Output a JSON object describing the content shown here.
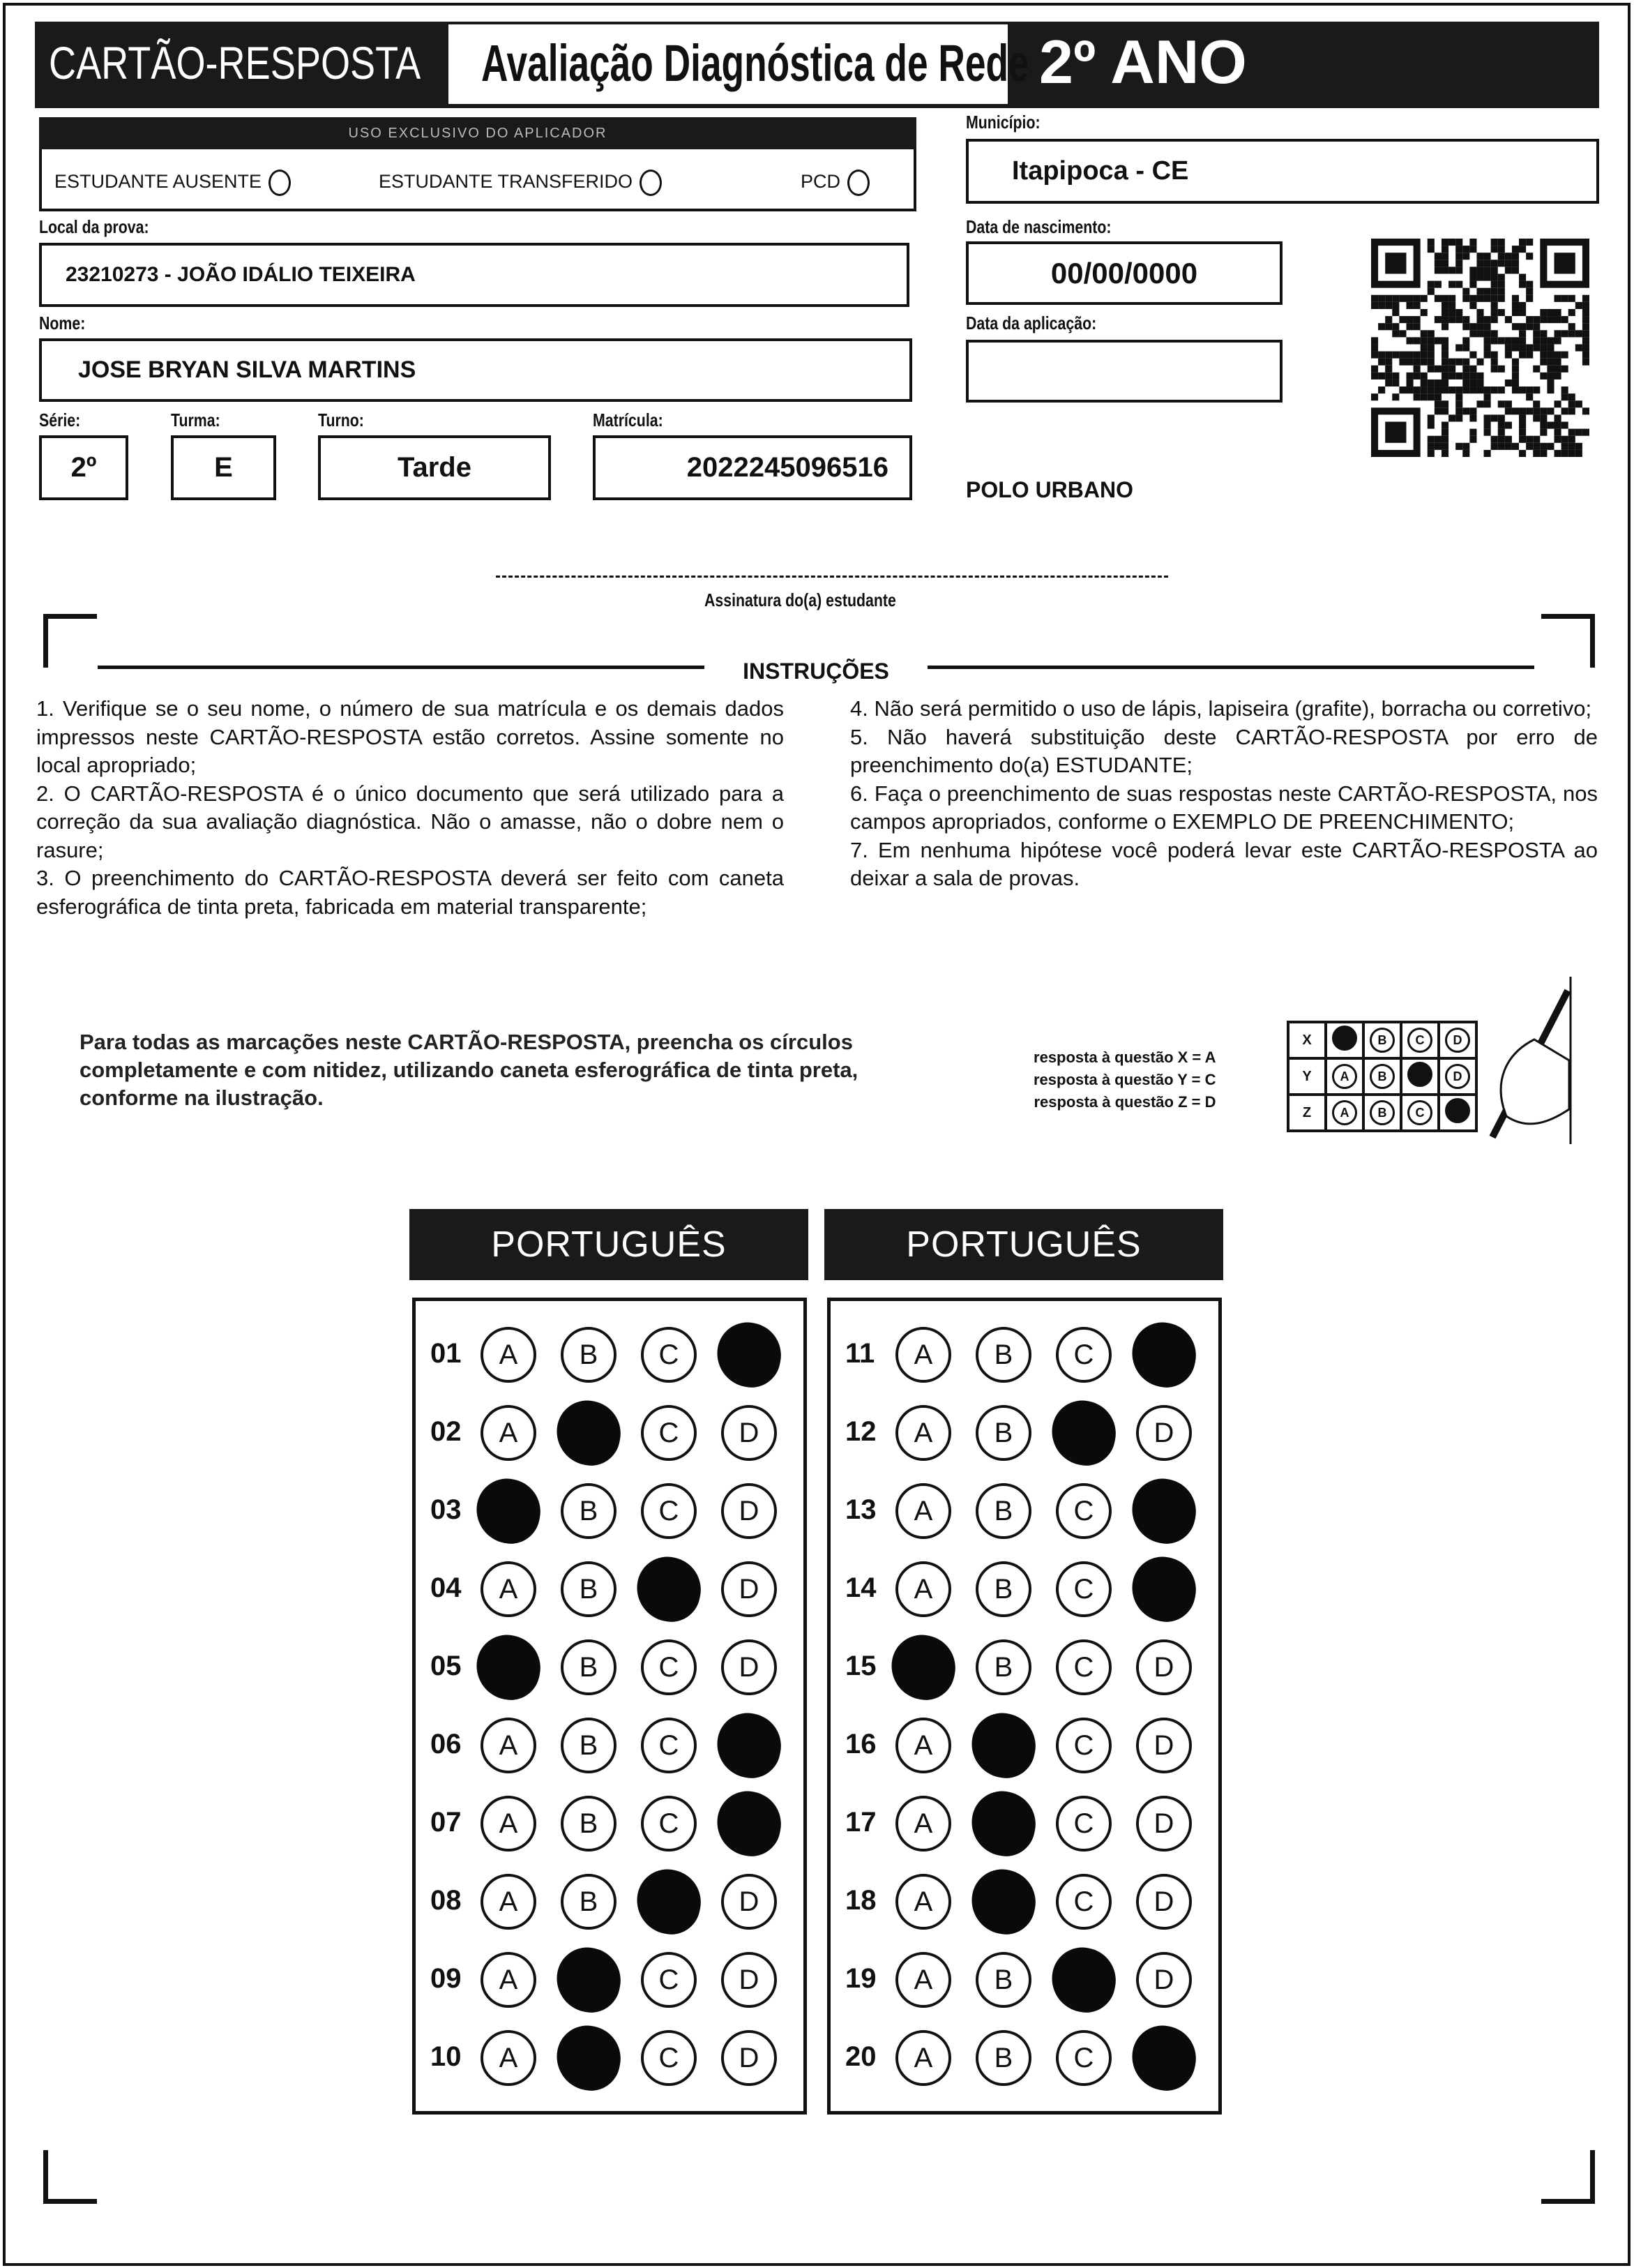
{
  "header": {
    "card_title": "CARTÃO-RESPOSTA",
    "exam_title": "Avaliação Diagnóstica de Rede",
    "grade": "2º ANO"
  },
  "applicator": {
    "title": "USO EXCLUSIVO DO APLICADOR",
    "options": [
      "ESTUDANTE AUSENTE",
      "ESTUDANTE TRANSFERIDO",
      "PCD"
    ]
  },
  "fields": {
    "municipio_label": "Município:",
    "municipio": "Itapipoca - CE",
    "local_label": "Local da prova:",
    "local": "23210273 - JOÃO IDÁLIO TEIXEIRA",
    "nascimento_label": "Data de nascimento:",
    "nascimento": "00/00/0000",
    "nome_label": "Nome:",
    "nome": "JOSE BRYAN SILVA MARTINS",
    "aplicacao_label": "Data da aplicação:",
    "aplicacao": "",
    "serie_label": "Série:",
    "serie": "2º",
    "turma_label": "Turma:",
    "turma": "E",
    "turno_label": "Turno:",
    "turno": "Tarde",
    "matricula_label": "Matrícula:",
    "matricula": "2022245096516",
    "polo": "POLO URBANO"
  },
  "signature_label": "Assinatura do(a) estudante",
  "instructions": {
    "title": "INSTRUÇÕES",
    "left": [
      "1. Verifique se o seu nome, o número de sua matrícula e os demais dados impressos neste CARTÃO-RESPOSTA estão corretos. Assine somente no local apropriado;",
      "2. O CARTÃO-RESPOSTA é o único documento que será utilizado para a correção da sua avaliação diagnóstica. Não o amasse, não o dobre nem o rasure;",
      "3. O preenchimento do CARTÃO-RESPOSTA deverá ser feito com caneta esferográfica de tinta preta, fabricada em material transparente;"
    ],
    "right": [
      "4. Não será permitido o uso de lápis, lapiseira (grafite), borracha ou corretivo;",
      "5. Não haverá substituição deste CARTÃO-RESPOSTA por erro de preenchimento do(a) ESTUDANTE;",
      "6. Faça o preenchimento de suas respostas neste CARTÃO-RESPOSTA, nos campos apropriados, conforme o EXEMPLO DE PREENCHIMENTO;",
      "7. Em nenhuma hipótese você poderá levar este CARTÃO-RESPOSTA ao deixar a sala de provas."
    ]
  },
  "example": {
    "text": "Para todas as marcações neste CARTÃO-RESPOSTA, preencha os círculos completamente e com nitidez, utilizando caneta esferográfica de tinta preta, conforme na ilustração.",
    "legend": [
      "resposta à questão X = A",
      "resposta à questão Y = C",
      "resposta à questão Z = D"
    ],
    "rows": [
      {
        "q": "X",
        "filled": "A"
      },
      {
        "q": "Y",
        "filled": "C"
      },
      {
        "q": "Z",
        "filled": "D"
      }
    ]
  },
  "options": [
    "A",
    "B",
    "C",
    "D"
  ],
  "sections": [
    {
      "subject": "PORTUGUÊS",
      "questions": [
        {
          "n": "01",
          "marked": "D"
        },
        {
          "n": "02",
          "marked": "B"
        },
        {
          "n": "03",
          "marked": "A"
        },
        {
          "n": "04",
          "marked": "C"
        },
        {
          "n": "05",
          "marked": "A"
        },
        {
          "n": "06",
          "marked": "D"
        },
        {
          "n": "07",
          "marked": "D"
        },
        {
          "n": "08",
          "marked": "C"
        },
        {
          "n": "09",
          "marked": "B"
        },
        {
          "n": "10",
          "marked": "B"
        }
      ]
    },
    {
      "subject": "PORTUGUÊS",
      "questions": [
        {
          "n": "11",
          "marked": "D"
        },
        {
          "n": "12",
          "marked": "C"
        },
        {
          "n": "13",
          "marked": "D"
        },
        {
          "n": "14",
          "marked": "D"
        },
        {
          "n": "15",
          "marked": "A"
        },
        {
          "n": "16",
          "marked": "B"
        },
        {
          "n": "17",
          "marked": "B"
        },
        {
          "n": "18",
          "marked": "B"
        },
        {
          "n": "19",
          "marked": "C"
        },
        {
          "n": "20",
          "marked": "D"
        }
      ]
    }
  ]
}
